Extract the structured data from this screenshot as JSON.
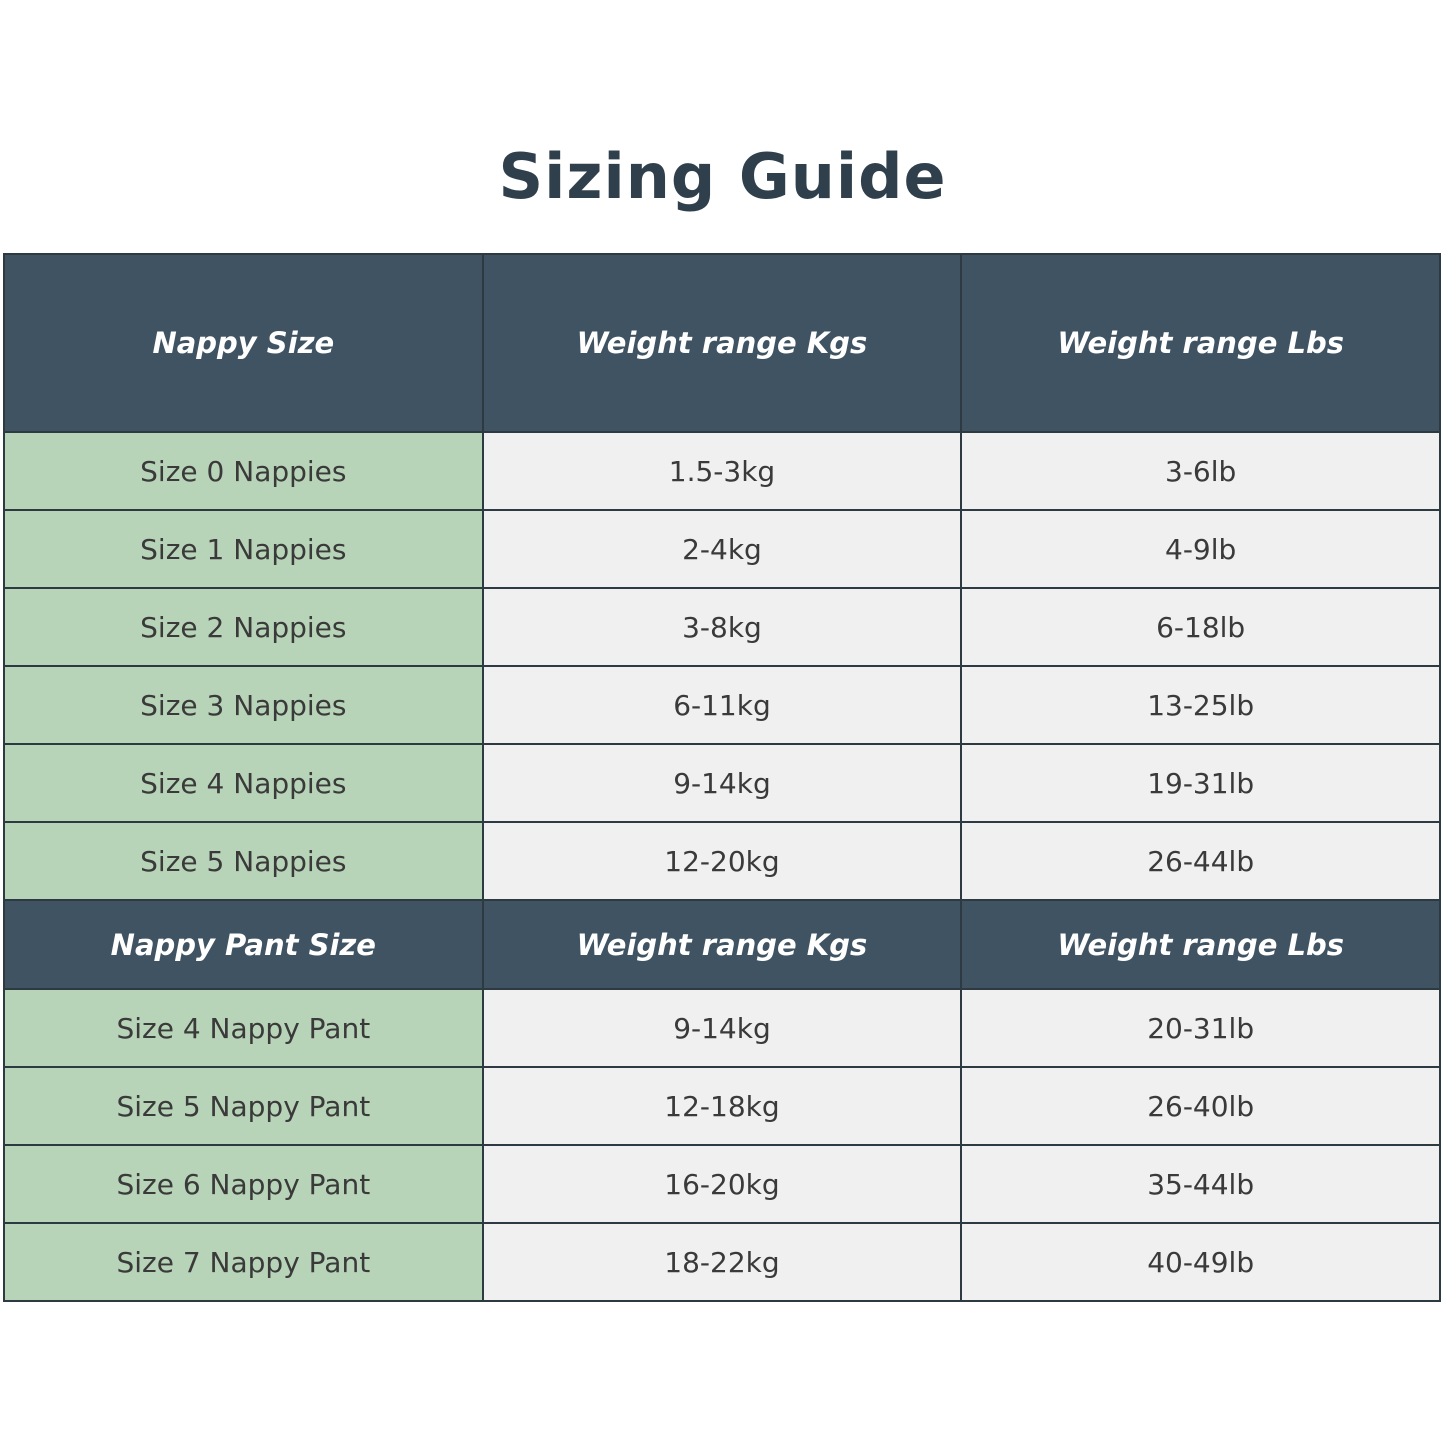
{
  "title": "Sizing Guide",
  "colors": {
    "header_bg": "#3f5362",
    "size_column_bg": "#b8d4b8",
    "cell_bg": "#f0f0f0",
    "title": "#2f3f4b"
  },
  "nappies": {
    "headers": [
      "Nappy Size",
      "Weight range Kgs",
      "Weight range Lbs"
    ],
    "rows": [
      [
        "Size 0 Nappies",
        "1.5-3kg",
        "3-6lb"
      ],
      [
        "Size 1 Nappies",
        "2-4kg",
        "4-9lb"
      ],
      [
        "Size 2 Nappies",
        "3-8kg",
        "6-18lb"
      ],
      [
        "Size 3 Nappies",
        "6-11kg",
        "13-25lb"
      ],
      [
        "Size 4 Nappies",
        "9-14kg",
        "19-31lb"
      ],
      [
        "Size 5 Nappies",
        "12-20kg",
        "26-44lb"
      ]
    ]
  },
  "pants": {
    "headers": [
      "Nappy Pant Size",
      "Weight range Kgs",
      "Weight range Lbs"
    ],
    "rows": [
      [
        "Size 4 Nappy Pant",
        "9-14kg",
        "20-31lb"
      ],
      [
        "Size 5 Nappy Pant",
        "12-18kg",
        "26-40lb"
      ],
      [
        "Size 6 Nappy Pant",
        "16-20kg",
        "35-44lb"
      ],
      [
        "Size 7 Nappy Pant",
        "18-22kg",
        "40-49lb"
      ]
    ]
  }
}
